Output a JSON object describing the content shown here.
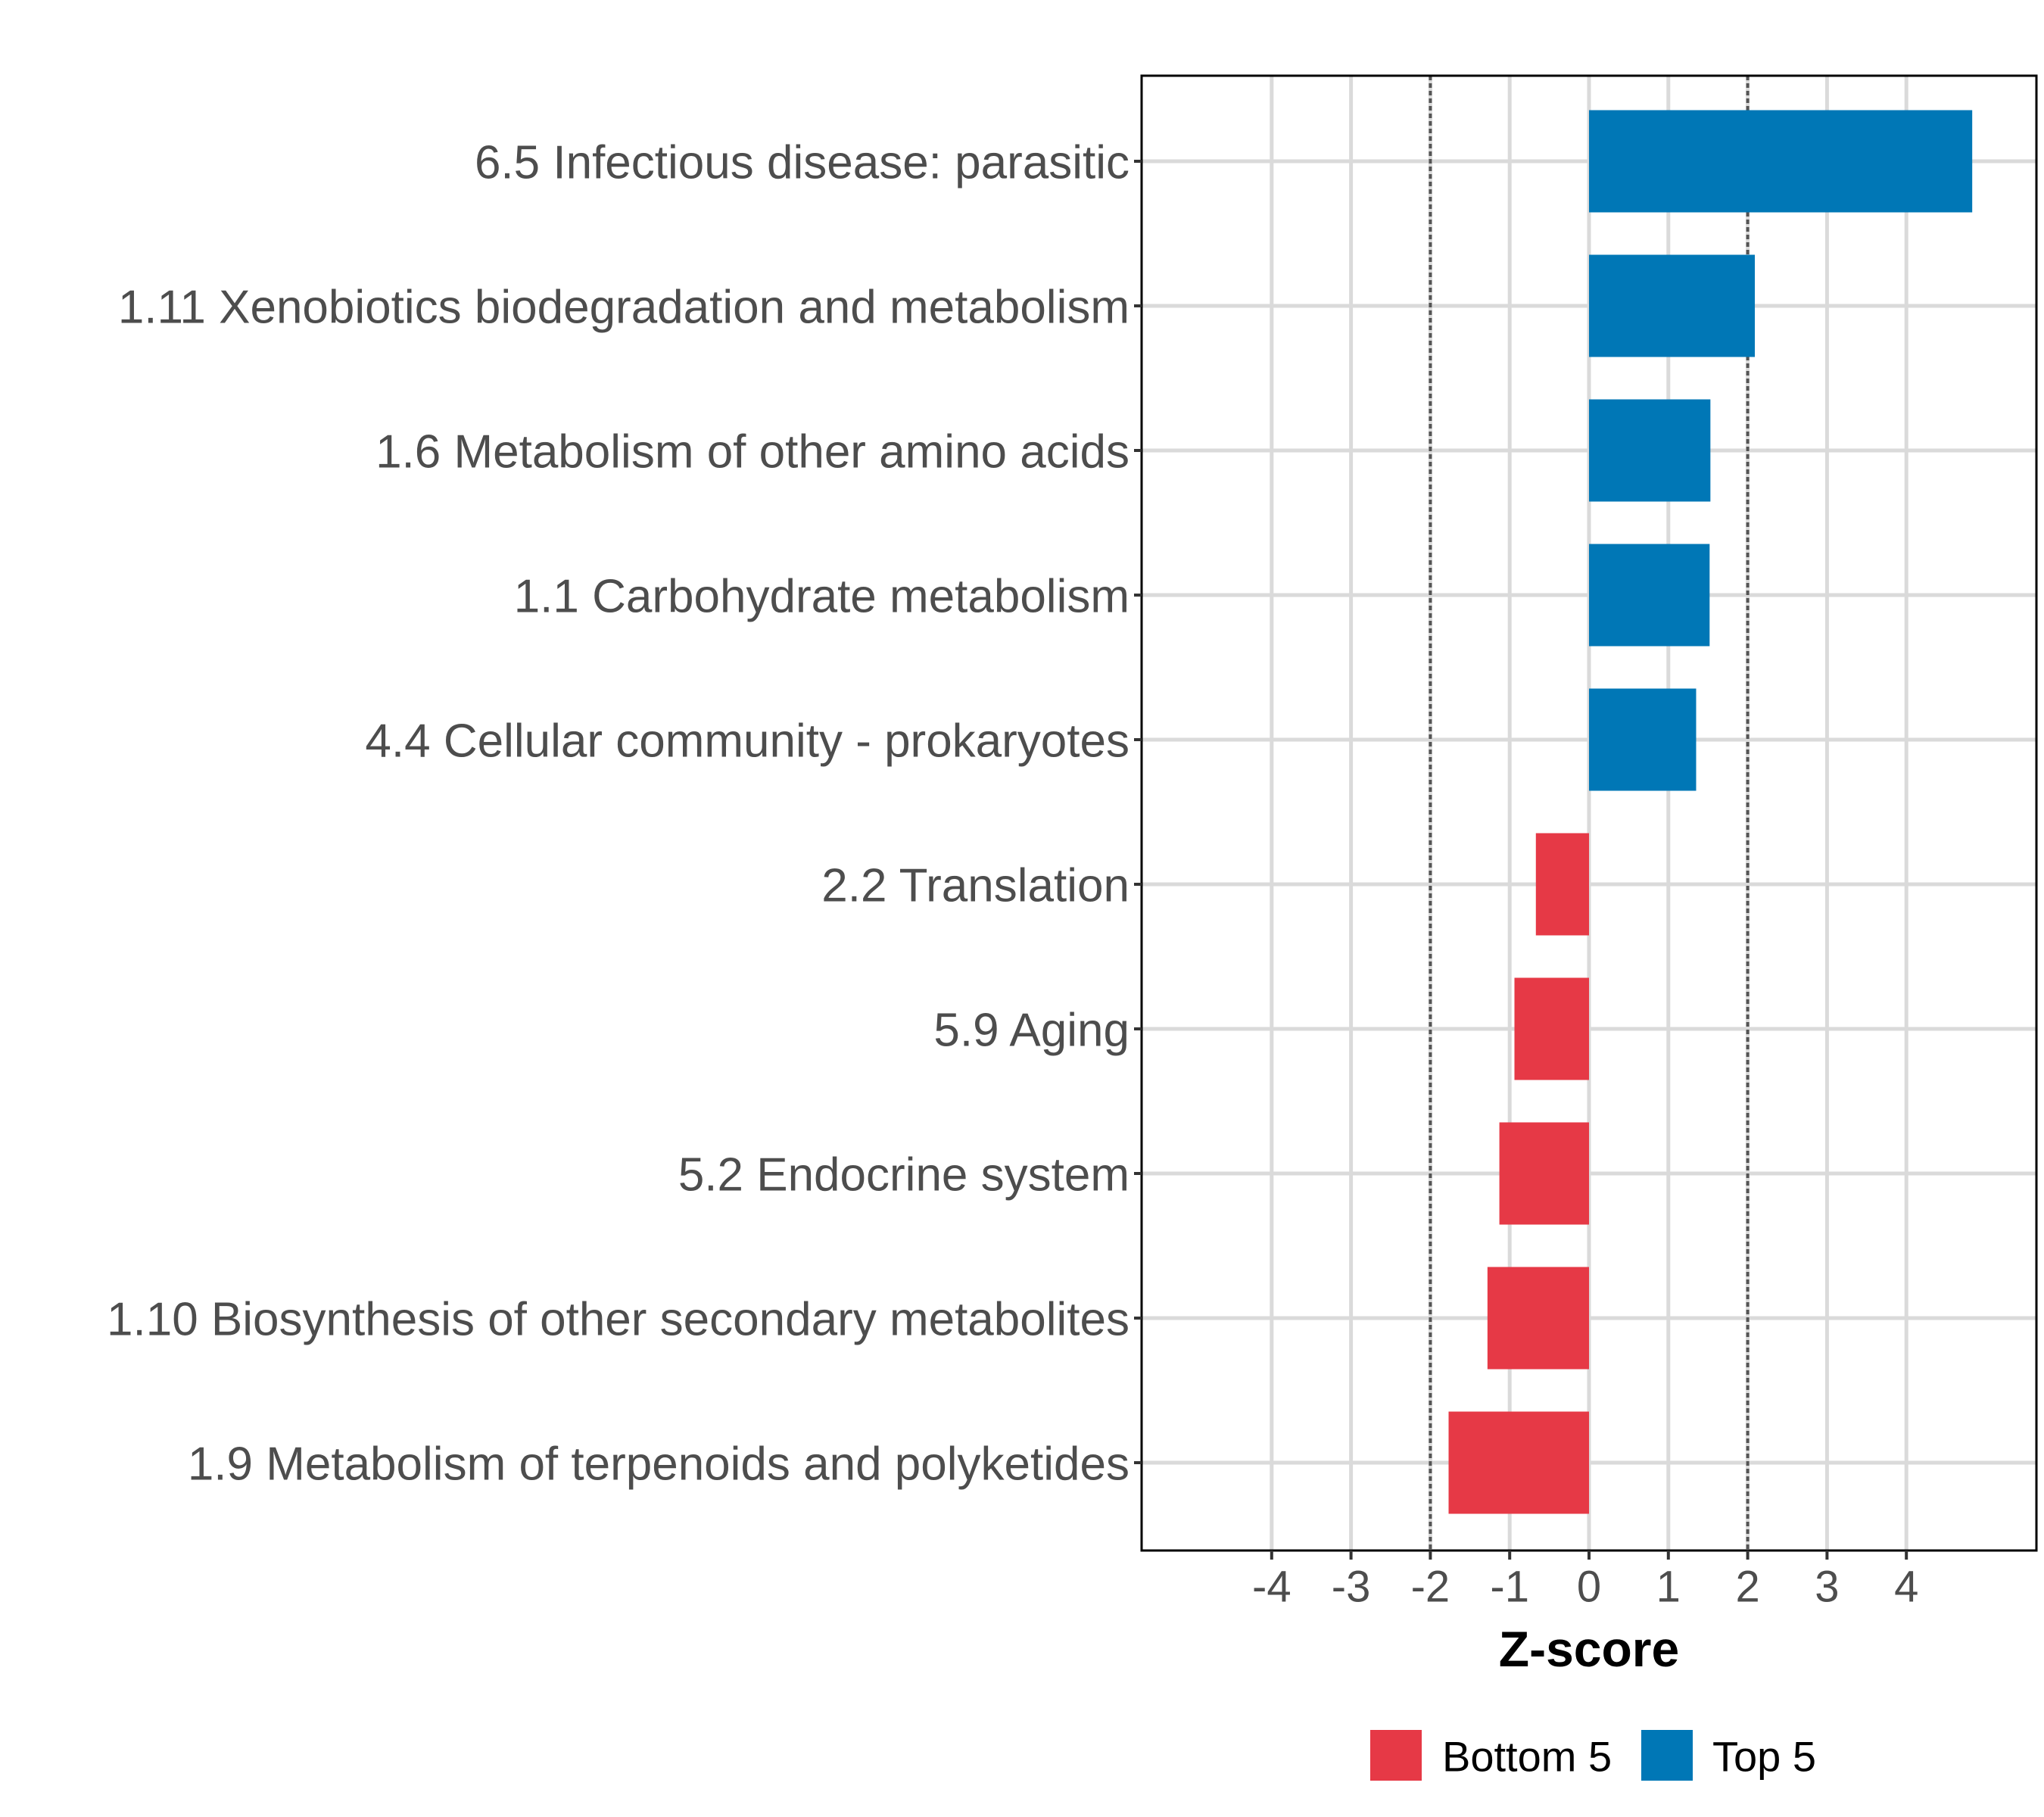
{
  "chart_data": {
    "type": "bar",
    "orientation": "horizontal",
    "title": "",
    "xlabel": "Z-score",
    "ylabel": "",
    "xlim": [
      -5.6,
      5.7
    ],
    "x_ticks": [
      -4,
      -3,
      -2,
      -1,
      0,
      1,
      2,
      3,
      4
    ],
    "x_tick_labels": [
      "-4",
      "-3",
      "-2",
      "-1",
      "0",
      "1",
      "2",
      "3",
      "4"
    ],
    "reference_lines": [
      -2,
      2
    ],
    "grid": true,
    "categories": [
      "6.5 Infectious disease: parasitic",
      "1.11 Xenobiotics biodegradation and metabolism",
      "1.6 Metabolism of other amino acids",
      "1.1 Carbohydrate metabolism",
      "4.4 Cellular community - prokaryotes",
      "2.2 Translation",
      "5.9 Aging",
      "5.2 Endocrine system",
      "1.10 Biosynthesis of other secondary metabolites",
      "1.9 Metabolism of terpenoids and polyketides"
    ],
    "values": [
      4.83,
      2.09,
      1.53,
      1.52,
      1.35,
      -0.67,
      -0.94,
      -1.13,
      -1.28,
      -1.77
    ],
    "groups": [
      "Top 5",
      "Top 5",
      "Top 5",
      "Top 5",
      "Top 5",
      "Bottom 5",
      "Bottom 5",
      "Bottom 5",
      "Bottom 5",
      "Bottom 5"
    ],
    "legend": {
      "position": "bottom",
      "entries": [
        {
          "label": "Bottom 5",
          "color": "#e63946"
        },
        {
          "label": "Top 5",
          "color": "#0077b6"
        }
      ]
    }
  }
}
